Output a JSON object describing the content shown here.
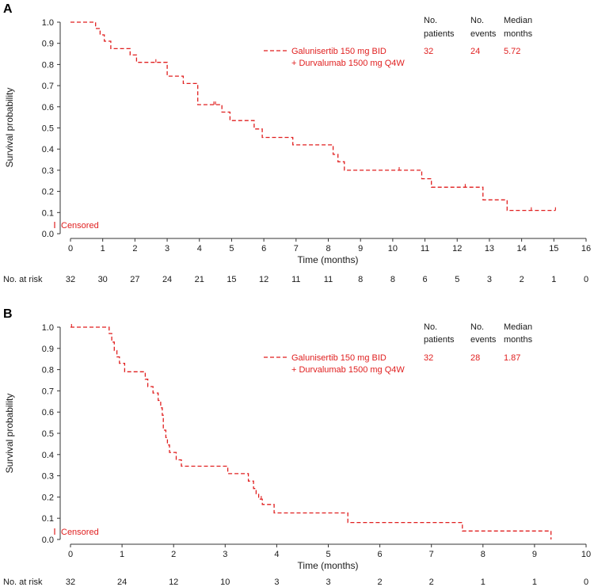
{
  "colors": {
    "curve": "#e01f1f",
    "axis": "#333333",
    "text": "#1a1a1a"
  },
  "chart_data": [
    {
      "type": "line",
      "panel_label": "A",
      "xlabel": "Time (months)",
      "ylabel": "Survival probability",
      "xlim": [
        0,
        16
      ],
      "ylim": [
        0,
        1.0
      ],
      "x_ticks": [
        0,
        1,
        2,
        3,
        4,
        5,
        6,
        7,
        8,
        9,
        10,
        11,
        12,
        13,
        14,
        15,
        16
      ],
      "y_ticks": [
        "0.0",
        "0.1",
        "0.2",
        "0.3",
        "0.4",
        "0.5",
        "0.6",
        "0.7",
        "0.8",
        "0.9",
        "1.0"
      ],
      "legend": {
        "headers": [
          "No.\npatients",
          "No.\nevents",
          "Median\nmonths"
        ],
        "series_label": [
          "Galunisertib 150 mg BID",
          "+ Durvalumab 1500 mg Q4W"
        ],
        "patients": "32",
        "events": "24",
        "median": "5.72",
        "censored_label": "Censored"
      },
      "series": [
        {
          "name": "Galunisertib 150 mg BID + Durvalumab 1500 mg Q4W",
          "steps": [
            [
              0,
              1.0
            ],
            [
              0.78,
              0.97
            ],
            [
              0.92,
              0.94
            ],
            [
              1.05,
              0.91
            ],
            [
              1.25,
              0.875
            ],
            [
              1.85,
              0.845
            ],
            [
              2.05,
              0.81
            ],
            [
              3.0,
              0.745
            ],
            [
              3.5,
              0.71
            ],
            [
              3.95,
              0.61
            ],
            [
              4.7,
              0.575
            ],
            [
              4.95,
              0.535
            ],
            [
              5.7,
              0.495
            ],
            [
              5.95,
              0.455
            ],
            [
              6.9,
              0.42
            ],
            [
              8.15,
              0.375
            ],
            [
              8.3,
              0.34
            ],
            [
              8.5,
              0.3
            ],
            [
              10.9,
              0.26
            ],
            [
              11.2,
              0.22
            ],
            [
              12.8,
              0.16
            ],
            [
              13.55,
              0.11
            ],
            [
              15.05,
              0.11
            ]
          ],
          "censor_times": [
            2.65,
            4.45,
            4.5,
            10.2,
            12.25,
            14.3,
            15.05
          ]
        }
      ],
      "risk_table": {
        "label": "No. at risk",
        "times": [
          0,
          1,
          2,
          3,
          4,
          5,
          6,
          7,
          8,
          9,
          10,
          11,
          12,
          13,
          14,
          15,
          16
        ],
        "counts": [
          "32",
          "30",
          "27",
          "24",
          "21",
          "15",
          "12",
          "11",
          "11",
          "8",
          "8",
          "6",
          "5",
          "3",
          "2",
          "1",
          "0"
        ]
      }
    },
    {
      "type": "line",
      "panel_label": "B",
      "xlabel": "Time (months)",
      "ylabel": "Survival probability",
      "xlim": [
        0,
        10
      ],
      "ylim": [
        0,
        1.0
      ],
      "x_ticks": [
        0,
        1,
        2,
        3,
        4,
        5,
        6,
        7,
        8,
        9,
        10
      ],
      "y_ticks": [
        "0.0",
        "0.1",
        "0.2",
        "0.3",
        "0.4",
        "0.5",
        "0.6",
        "0.7",
        "0.8",
        "0.9",
        "1.0"
      ],
      "legend": {
        "headers": [
          "No.\npatients",
          "No.\nevents",
          "Median\nmonths"
        ],
        "series_label": [
          "Galunisertib 150 mg BID",
          "+ Durvalumab 1500 mg Q4W"
        ],
        "patients": "32",
        "events": "28",
        "median": "1.87",
        "censored_label": "Censored"
      },
      "series": [
        {
          "name": "Galunisertib 150 mg BID + Durvalumab 1500 mg Q4W",
          "steps": [
            [
              0,
              1.0
            ],
            [
              0.75,
              0.97
            ],
            [
              0.8,
              0.93
            ],
            [
              0.85,
              0.89
            ],
            [
              0.9,
              0.86
            ],
            [
              0.95,
              0.83
            ],
            [
              1.05,
              0.79
            ],
            [
              1.45,
              0.755
            ],
            [
              1.5,
              0.72
            ],
            [
              1.6,
              0.69
            ],
            [
              1.7,
              0.655
            ],
            [
              1.75,
              0.62
            ],
            [
              1.78,
              0.585
            ],
            [
              1.8,
              0.515
            ],
            [
              1.85,
              0.48
            ],
            [
              1.88,
              0.445
            ],
            [
              1.92,
              0.41
            ],
            [
              2.05,
              0.375
            ],
            [
              2.15,
              0.345
            ],
            [
              3.05,
              0.31
            ],
            [
              3.45,
              0.275
            ],
            [
              3.55,
              0.24
            ],
            [
              3.6,
              0.215
            ],
            [
              3.65,
              0.19
            ],
            [
              3.72,
              0.165
            ],
            [
              3.95,
              0.125
            ],
            [
              5.38,
              0.08
            ],
            [
              7.6,
              0.04
            ],
            [
              9.32,
              0.0
            ]
          ],
          "censor_times": [
            0.02,
            3.7
          ]
        }
      ],
      "risk_table": {
        "label": "No. at risk",
        "times": [
          0,
          1,
          2,
          3,
          4,
          5,
          6,
          7,
          8,
          9,
          10
        ],
        "counts": [
          "32",
          "24",
          "12",
          "10",
          "3",
          "3",
          "2",
          "2",
          "1",
          "1",
          "0"
        ]
      }
    }
  ]
}
